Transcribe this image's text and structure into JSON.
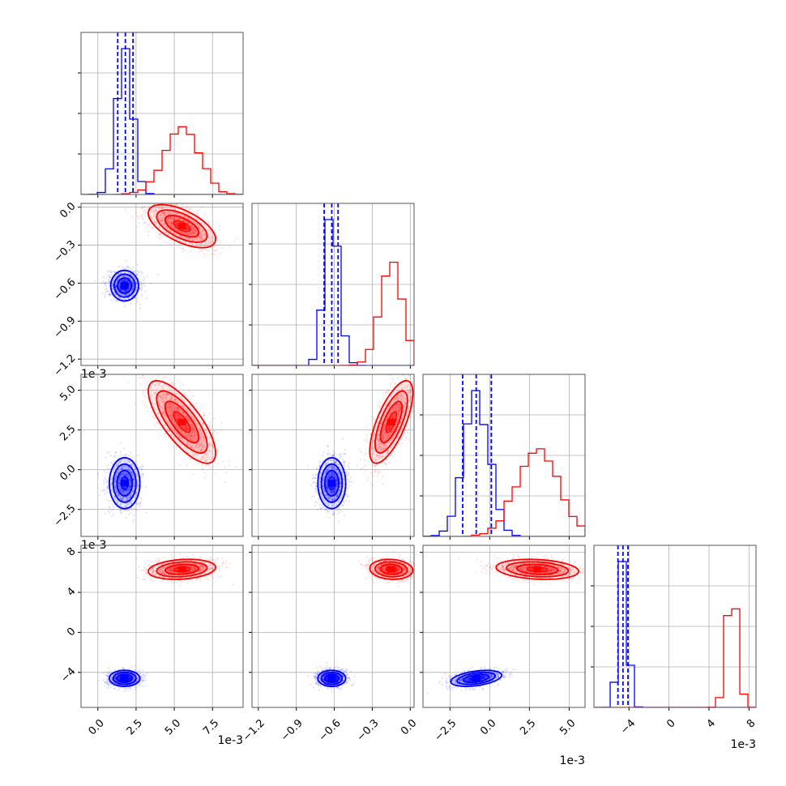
{
  "chart_data": {
    "type": "corner",
    "title": "",
    "colors": {
      "blue": "#0000ff",
      "red": "#ff0000",
      "grid": "#b0b0b0",
      "frame": "#555555"
    },
    "grid": true,
    "params": [
      {
        "range": [
          -0.0011,
          0.0095
        ],
        "ticks": [
          0.0,
          0.0025,
          0.005,
          0.0075
        ],
        "tick_labels": [
          "0.0",
          "2.5",
          "5.0",
          "7.5"
        ],
        "offset_label": "1e-3"
      },
      {
        "range": [
          -0.00125,
          3e-05
        ],
        "ticks": [
          -0.0012,
          -0.0009,
          -0.0006,
          -0.0003,
          0.0
        ],
        "tick_labels": [
          "−1.2",
          "−0.9",
          "−0.6",
          "−0.3",
          "0.0"
        ],
        "offset_label": "1e-3"
      },
      {
        "range": [
          -0.0042,
          0.006
        ],
        "ticks": [
          -0.0025,
          0.0,
          0.0025,
          0.005
        ],
        "tick_labels": [
          "−2.5",
          "0.0",
          "2.5",
          "5.0"
        ],
        "offset_label": "1e-3"
      },
      {
        "range": [
          -0.0075,
          0.0087
        ],
        "ticks": [
          -0.004,
          0.0,
          0.004,
          0.008
        ],
        "tick_labels": [
          "−4",
          "0",
          "4",
          "8"
        ],
        "offset_label": "1e-3"
      }
    ],
    "series": [
      {
        "color": "#0000ff",
        "mean": [
          0.00175,
          -0.00062,
          -0.00085,
          -0.0046
        ],
        "sd": [
          0.0005,
          5.5e-05,
          0.0008,
          0.0004
        ],
        "corr": [
          [
            1,
            0,
            0,
            0
          ],
          [
            0,
            1,
            0,
            0
          ],
          [
            0,
            0,
            1,
            0.4
          ],
          [
            0,
            0,
            0.4,
            1
          ]
        ],
        "quantiles": [
          [
            0.0013,
            0.0018,
            0.0023
          ],
          [
            -0.00068,
            -0.00062,
            -0.00057
          ],
          [
            -0.0017,
            -0.00085,
            0.0001
          ],
          [
            -0.0051,
            -0.0046,
            -0.0041
          ]
        ]
      },
      {
        "color": "#ff0000",
        "mean": [
          0.0055,
          -0.00015,
          0.003,
          0.0063
        ],
        "sd": [
          0.0011,
          8.5e-05,
          0.0013,
          0.0005
        ],
        "corr": [
          [
            1,
            -0.6,
            -0.75,
            0.2
          ],
          [
            -0.6,
            1,
            0.7,
            -0.1
          ],
          [
            -0.75,
            0.7,
            1,
            -0.2
          ],
          [
            0.2,
            -0.1,
            -0.2,
            1
          ]
        ]
      }
    ]
  }
}
